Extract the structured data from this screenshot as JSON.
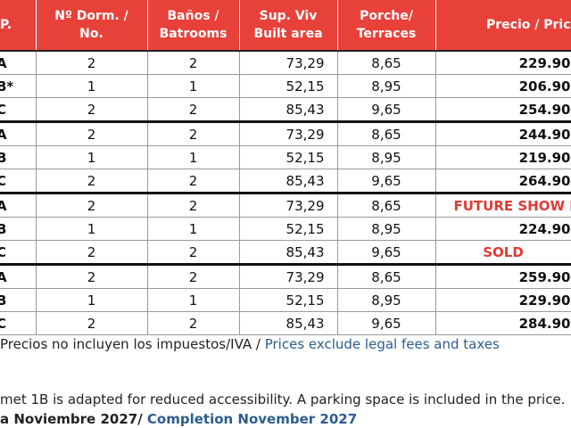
{
  "table": {
    "header": [
      [
        "P."
      ],
      [
        "Nº Dorm. /",
        "No."
      ],
      [
        "Baños /",
        "Batrooms"
      ],
      [
        "Sup. Viv",
        "Built area"
      ],
      [
        "Porche/",
        "Terraces"
      ],
      [
        "Precio / Pric"
      ]
    ],
    "rows": [
      [
        "A",
        "2",
        "2",
        "73,29",
        "8,65",
        "229.90"
      ],
      [
        "B*",
        "1",
        "1",
        "52,15",
        "8,95",
        "206.90"
      ],
      [
        "C",
        "2",
        "2",
        "85,43",
        "9,65",
        "254.90"
      ],
      [
        "A",
        "2",
        "2",
        "73,29",
        "8,65",
        "244.90"
      ],
      [
        "B",
        "1",
        "1",
        "52,15",
        "8,95",
        "219.90"
      ],
      [
        "C",
        "2",
        "2",
        "85,43",
        "9,65",
        "264.90"
      ],
      [
        "A",
        "2",
        "2",
        "73,29",
        "8,65",
        "FUTURE SHOW HO"
      ],
      [
        "B",
        "1",
        "1",
        "52,15",
        "8,95",
        "224.90"
      ],
      [
        "C",
        "2",
        "2",
        "85,43",
        "9,65",
        "SOLD"
      ],
      [
        "A",
        "2",
        "2",
        "73,29",
        "8,65",
        "259.90"
      ],
      [
        "B",
        "1",
        "1",
        "52,15",
        "8,95",
        "229.90"
      ],
      [
        "C",
        "2",
        "2",
        "85,43",
        "9,65",
        "284.90"
      ]
    ]
  },
  "notes": {
    "taxes_es": "Precios no incluyen los impuestos/IVA / ",
    "taxes_en": "Prices exclude legal fees and taxes",
    "accessibility": "met 1B  is adapted for reduced accessibility. A parking space is included in the price.",
    "completion_es": "a Noviembre 2027/ ",
    "completion_en": "Completion November 2027"
  }
}
